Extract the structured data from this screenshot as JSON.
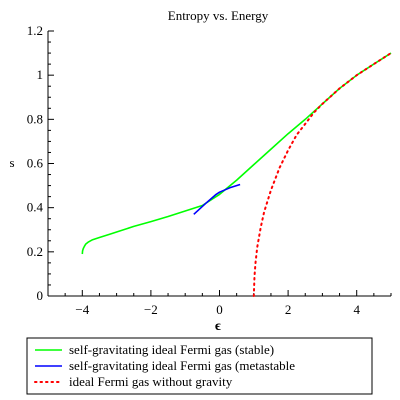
{
  "chart_data": {
    "type": "line",
    "title": "Entropy vs. Energy",
    "xlabel": "ϵ",
    "ylabel": "s",
    "xlim": [
      -5,
      5
    ],
    "ylim": [
      0,
      1.2
    ],
    "x_ticks": [
      -4,
      -2,
      0,
      2,
      4
    ],
    "x_tick_labels": [
      "−4",
      "−2",
      "0",
      "2",
      "4"
    ],
    "y_ticks": [
      0,
      0.2,
      0.4,
      0.6,
      0.8,
      1,
      1.2
    ],
    "y_tick_labels": [
      "0",
      "0.2",
      "0.4",
      "0.6",
      "0.8",
      "1",
      "1.2"
    ],
    "grid": false,
    "legend_position": "bottom",
    "series": [
      {
        "name": "self-gravitating ideal Fermi gas (stable)",
        "color": "#00ff00",
        "style": "solid",
        "x": [
          -4.0,
          -3.99,
          -3.97,
          -3.94,
          -3.9,
          -3.82,
          -3.7,
          -3.5,
          -3.2,
          -3.0,
          -2.5,
          -2.0,
          -1.5,
          -1.0,
          -0.5,
          0.0,
          0.5,
          1.0,
          1.5,
          2.0,
          2.5,
          3.0,
          3.5,
          4.0,
          4.5,
          5.0
        ],
        "y": [
          0.19,
          0.205,
          0.215,
          0.225,
          0.235,
          0.245,
          0.255,
          0.265,
          0.28,
          0.29,
          0.315,
          0.337,
          0.36,
          0.385,
          0.41,
          0.46,
          0.525,
          0.595,
          0.665,
          0.735,
          0.8,
          0.87,
          0.94,
          1.0,
          1.05,
          1.1
        ]
      },
      {
        "name": "self-gravitating ideal Fermi gas (metastable",
        "color": "#0000ff",
        "style": "solid",
        "x": [
          -0.75,
          -0.4,
          -0.1,
          0.0,
          0.3,
          0.6
        ],
        "y": [
          0.37,
          0.42,
          0.46,
          0.47,
          0.49,
          0.505
        ]
      },
      {
        "name": "ideal Fermi gas without gravity",
        "color": "#ff0000",
        "style": "dotted",
        "x": [
          1.0,
          1.02,
          1.05,
          1.1,
          1.2,
          1.3,
          1.5,
          1.75,
          2.0,
          2.25,
          2.5,
          2.75,
          3.0,
          3.5,
          4.0,
          4.5,
          5.0
        ],
        "y": [
          0.0,
          0.09,
          0.15,
          0.22,
          0.31,
          0.38,
          0.48,
          0.58,
          0.66,
          0.73,
          0.78,
          0.83,
          0.87,
          0.94,
          1.0,
          1.05,
          1.1
        ]
      }
    ]
  }
}
